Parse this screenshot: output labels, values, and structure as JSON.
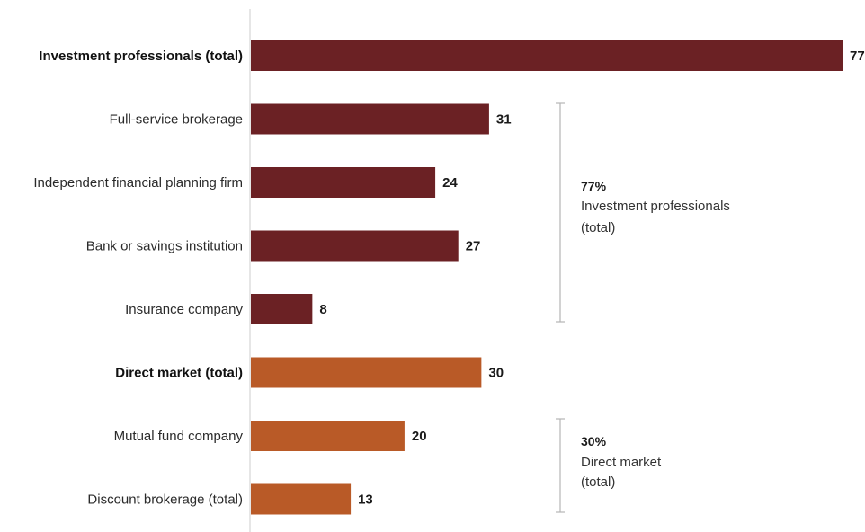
{
  "chart_data": {
    "type": "bar",
    "orientation": "horizontal",
    "categories": [
      "Investment professionals (total)",
      "Full-service brokerage",
      "Independent financial planning firm",
      "Bank or savings institution",
      "Insurance company",
      "Direct market (total)",
      "Mutual fund company",
      "Discount brokerage (total)"
    ],
    "values": [
      77,
      31,
      24,
      27,
      8,
      30,
      20,
      13
    ],
    "bold_categories": [
      "Investment professionals (total)",
      "Direct market (total)"
    ],
    "bar_colors": [
      "#6b2124",
      "#6b2124",
      "#6b2124",
      "#6b2124",
      "#6b2124",
      "#b95a27",
      "#b95a27",
      "#b95a27"
    ],
    "xlim": [
      0,
      77
    ],
    "grid": false,
    "annotations": [
      {
        "percent": "77%",
        "line1": "Investment professionals",
        "line2": "(total)",
        "span_categories": [
          "Full-service brokerage",
          "Insurance company"
        ]
      },
      {
        "percent": "30%",
        "line1": "Direct market",
        "line2": "(total)",
        "span_categories": [
          "Mutual fund company",
          "Discount brokerage (total)"
        ]
      }
    ],
    "colors": {
      "investment": "#6b2124",
      "direct": "#b95a27",
      "axis": "#cccccc",
      "bracket": "#b5b5b5"
    }
  }
}
